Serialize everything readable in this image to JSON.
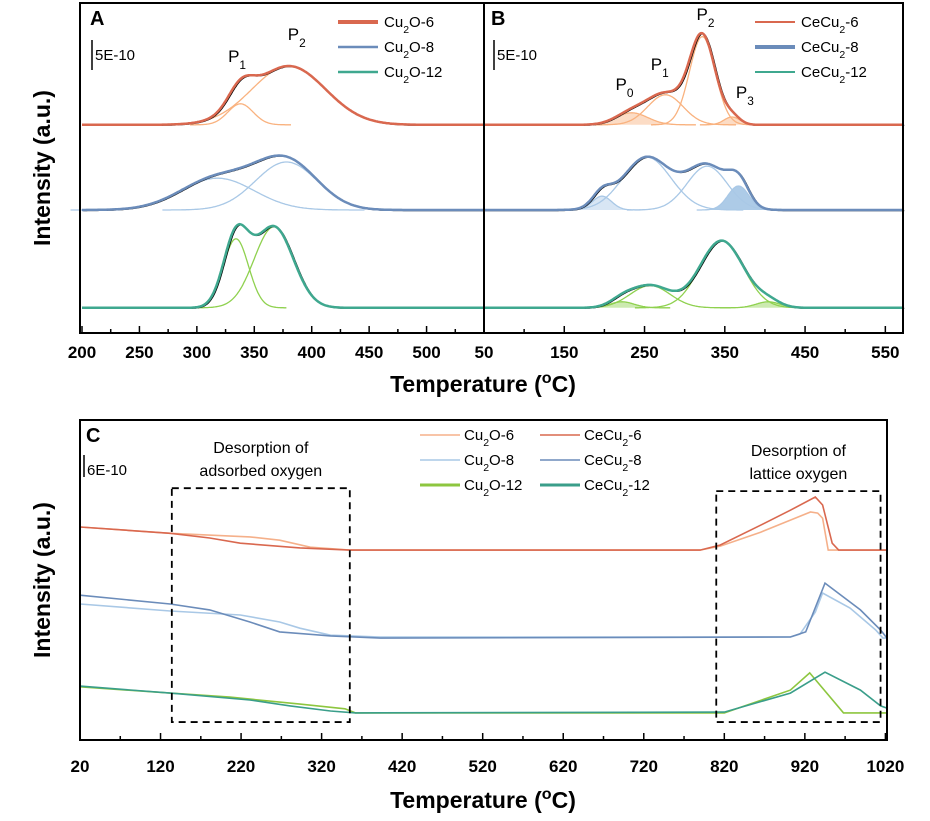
{
  "chart_data": [
    {
      "panel": "A",
      "type": "line",
      "xlabel": "Temperature (oC)",
      "ylabel": "Intensity (a.u.)",
      "xlim": [
        200,
        550
      ],
      "xticks": [
        200,
        250,
        300,
        350,
        400,
        450,
        500
      ],
      "ylim": [
        0,
        55
      ],
      "grid": false,
      "legend_position": "top-right",
      "scale_bar": {
        "label": "5E-10",
        "value": 5
      },
      "series": [
        {
          "name": "Cu2O-6",
          "color": "#d9684f",
          "component_color": "#f9b27f",
          "offset": 34.7,
          "components": [
            {
              "center": 338,
              "height": 3.5,
              "sigma": 11
            },
            {
              "center": 380,
              "height": 9.8,
              "sigma": 32
            }
          ]
        },
        {
          "name": "Cu2O-8",
          "color": "#6b8cba",
          "component_color": "#a9c8e6",
          "offset": 20.5,
          "components": [
            {
              "center": 318,
              "height": 5.3,
              "sigma": 32
            },
            {
              "center": 378,
              "height": 8.0,
              "sigma": 27
            }
          ]
        },
        {
          "name": "Cu2O-12",
          "color": "#3fa88f",
          "component_color": "#8fd14f",
          "offset": 4.2,
          "components": [
            {
              "center": 334,
              "height": 11.5,
              "sigma": 11
            },
            {
              "center": 367,
              "height": 13.5,
              "sigma": 17
            }
          ]
        }
      ],
      "peak_labels": [
        {
          "text": "P1",
          "x": 335,
          "y": 45.2
        },
        {
          "text": "P2",
          "x": 387,
          "y": 48.8
        }
      ]
    },
    {
      "panel": "B",
      "type": "line",
      "xlabel": "Temperature (oC)",
      "xlim": [
        50,
        572
      ],
      "xticks": [
        50,
        150,
        250,
        350,
        450,
        550
      ],
      "ylim": [
        0,
        55
      ],
      "grid": false,
      "legend_position": "top-right",
      "scale_bar": {
        "label": "5E-10",
        "value": 5
      },
      "series": [
        {
          "name": "CeCu2-6",
          "color": "#d9684f",
          "component_color": "#f9b27f",
          "offset": 34.7,
          "components": [
            {
              "center": 234,
              "height": 2.0,
              "sigma": 20,
              "filled": true
            },
            {
              "center": 276,
              "height": 5.0,
              "sigma": 22
            },
            {
              "center": 322,
              "height": 14.7,
              "sigma": 16
            },
            {
              "center": 359,
              "height": 1.3,
              "sigma": 10,
              "filled": true
            }
          ]
        },
        {
          "name": "CeCu2-8",
          "color": "#6b8cba",
          "component_color": "#a9c8e6",
          "offset": 20.5,
          "components": [
            {
              "center": 197,
              "height": 2.3,
              "sigma": 12,
              "filled": true
            },
            {
              "center": 253,
              "height": 8.8,
              "sigma": 30
            },
            {
              "center": 328,
              "height": 7.3,
              "sigma": 25
            },
            {
              "center": 367,
              "height": 4.0,
              "sigma": 13,
              "filled": true,
              "strong": true
            }
          ]
        },
        {
          "name": "CeCu2-12",
          "color": "#3fa88f",
          "component_color": "#8fd14f",
          "offset": 4.2,
          "components": [
            {
              "center": 222,
              "height": 1.0,
              "sigma": 15,
              "filled": true
            },
            {
              "center": 257,
              "height": 3.7,
              "sigma": 25
            },
            {
              "center": 346,
              "height": 11.2,
              "sigma": 27
            },
            {
              "center": 404,
              "height": 1.0,
              "sigma": 15,
              "filled": true
            }
          ]
        }
      ],
      "peak_labels": [
        {
          "text": "P0",
          "x": 225,
          "y": 40.5
        },
        {
          "text": "P1",
          "x": 269,
          "y": 43.8
        },
        {
          "text": "P2",
          "x": 326,
          "y": 52.2
        },
        {
          "text": "P3",
          "x": 375,
          "y": 39.2
        }
      ]
    },
    {
      "panel": "C",
      "type": "line",
      "xlabel": "Temperature (oC)",
      "ylabel": "Intensity (a.u.)",
      "xlim": [
        20,
        1022
      ],
      "xticks": [
        20,
        120,
        220,
        320,
        420,
        520,
        620,
        720,
        820,
        920,
        1020
      ],
      "ylim": [
        0,
        87.3
      ],
      "grid": false,
      "legend_position": "top-center",
      "scale_bar": {
        "label": "6E-10",
        "value": 6
      },
      "series": [
        {
          "name": "Cu2O-6",
          "color": "#f5b08a",
          "points": [
            [
              20,
              58.1
            ],
            [
              132,
              56.4
            ],
            [
              231,
              55.4
            ],
            [
              268,
              54.5
            ],
            [
              306,
              52.6
            ],
            [
              355,
              51.8
            ],
            [
              790,
              51.8
            ],
            [
              815,
              52.9
            ],
            [
              865,
              56.7
            ],
            [
              902,
              60
            ],
            [
              927,
              62.2
            ],
            [
              936,
              61.9
            ],
            [
              942,
              60.5
            ],
            [
              949,
              51.8
            ],
            [
              976,
              51.8
            ],
            [
              1022,
              51.8
            ]
          ]
        },
        {
          "name": "CeCu2-6",
          "color": "#d9684f",
          "points": [
            [
              20,
              58.1
            ],
            [
              132,
              56.4
            ],
            [
              181,
              55.1
            ],
            [
              219,
              53.7
            ],
            [
              293,
              52.4
            ],
            [
              355,
              51.8
            ],
            [
              790,
              51.8
            ],
            [
              815,
              53.2
            ],
            [
              865,
              58.6
            ],
            [
              902,
              62.7
            ],
            [
              933,
              66.3
            ],
            [
              942,
              64.1
            ],
            [
              954,
              53.7
            ],
            [
              962,
              51.8
            ],
            [
              1022,
              51.8
            ]
          ]
        },
        {
          "name": "Cu2O-8",
          "color": "#a9c8e6",
          "points": [
            [
              20,
              37.1
            ],
            [
              132,
              35.2
            ],
            [
              219,
              34.1
            ],
            [
              268,
              32.2
            ],
            [
              293,
              30.5
            ],
            [
              331,
              28.6
            ],
            [
              393,
              28.1
            ],
            [
              902,
              28.1
            ],
            [
              914,
              28.9
            ],
            [
              933,
              34.9
            ],
            [
              942,
              40.1
            ],
            [
              976,
              36
            ],
            [
              1008,
              30
            ],
            [
              1017,
              27.8
            ],
            [
              1022,
              27.8
            ]
          ]
        },
        {
          "name": "CeCu2-8",
          "color": "#6b8cba",
          "points": [
            [
              20,
              39.5
            ],
            [
              132,
              37.1
            ],
            [
              181,
              35.5
            ],
            [
              231,
              32.2
            ],
            [
              268,
              29.5
            ],
            [
              331,
              28.4
            ],
            [
              393,
              27.8
            ],
            [
              902,
              28.1
            ],
            [
              921,
              29.5
            ],
            [
              945,
              42.8
            ],
            [
              989,
              35.5
            ],
            [
              1014,
              30
            ],
            [
              1022,
              27.8
            ]
          ]
        },
        {
          "name": "Cu2O-12",
          "color": "#8dc63f",
          "points": [
            [
              20,
              14.5
            ],
            [
              132,
              12.8
            ],
            [
              206,
              11.7
            ],
            [
              293,
              9.8
            ],
            [
              349,
              8.5
            ],
            [
              362,
              7.4
            ],
            [
              820,
              7.4
            ],
            [
              902,
              13.6
            ],
            [
              926,
              18.3
            ],
            [
              968,
              7.4
            ],
            [
              1022,
              7.4
            ]
          ]
        },
        {
          "name": "CeCu2-12",
          "color": "#3a9e8a",
          "points": [
            [
              20,
              14.7
            ],
            [
              132,
              12.8
            ],
            [
              231,
              10.9
            ],
            [
              281,
              9.3
            ],
            [
              331,
              7.9
            ],
            [
              362,
              7.4
            ],
            [
              820,
              7.6
            ],
            [
              902,
              12.8
            ],
            [
              945,
              18.5
            ],
            [
              989,
              13.6
            ],
            [
              1014,
              9.3
            ],
            [
              1022,
              8.7
            ]
          ]
        }
      ],
      "annotations": [
        {
          "lines": [
            "Desorption of",
            "adsorbed oxygen"
          ],
          "box_x": [
            134,
            355
          ],
          "box_y": [
            4.9,
            68.7
          ]
        },
        {
          "lines": [
            "Desorption of",
            "lattice oxygen"
          ],
          "box_x": [
            810,
            1014
          ],
          "box_y": [
            4.9,
            67.9
          ]
        }
      ]
    }
  ]
}
